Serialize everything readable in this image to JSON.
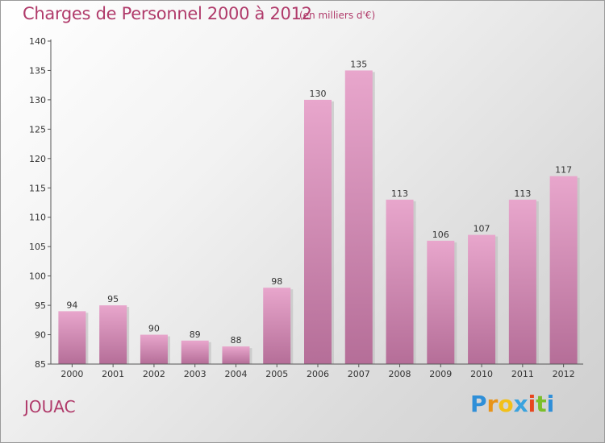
{
  "header": {
    "title": "Charges de Personnel 2000 à 2012",
    "subtitle": "(en milliers d'€)"
  },
  "footer": {
    "place": "JOUAC",
    "brand_letters": [
      "P",
      "r",
      "o",
      "x",
      "i",
      "t",
      "i"
    ],
    "brand_colors": [
      "#2f8fd8",
      "#e8941a",
      "#f2c019",
      "#3aa3de",
      "#e8461e",
      "#7bbf2a",
      "#2f8fd8"
    ]
  },
  "colors": {
    "bar_top": "#e8a6cc",
    "bar_bottom": "#b56e98",
    "accent_text": "#b03a6a",
    "axis": "#555555"
  },
  "chart_data": {
    "type": "bar",
    "title": "Charges de Personnel 2000 à 2012",
    "subtitle": "(en milliers d'€)",
    "categories": [
      "2000",
      "2001",
      "2002",
      "2003",
      "2004",
      "2005",
      "2006",
      "2007",
      "2008",
      "2009",
      "2010",
      "2011",
      "2012"
    ],
    "values": [
      94,
      95,
      90,
      89,
      88,
      98,
      130,
      135,
      113,
      106,
      107,
      113,
      117
    ],
    "ylim": [
      85,
      140
    ],
    "yticks": [
      85,
      90,
      95,
      100,
      105,
      110,
      115,
      120,
      125,
      130,
      135,
      140
    ],
    "grid": false,
    "legend": "none"
  }
}
